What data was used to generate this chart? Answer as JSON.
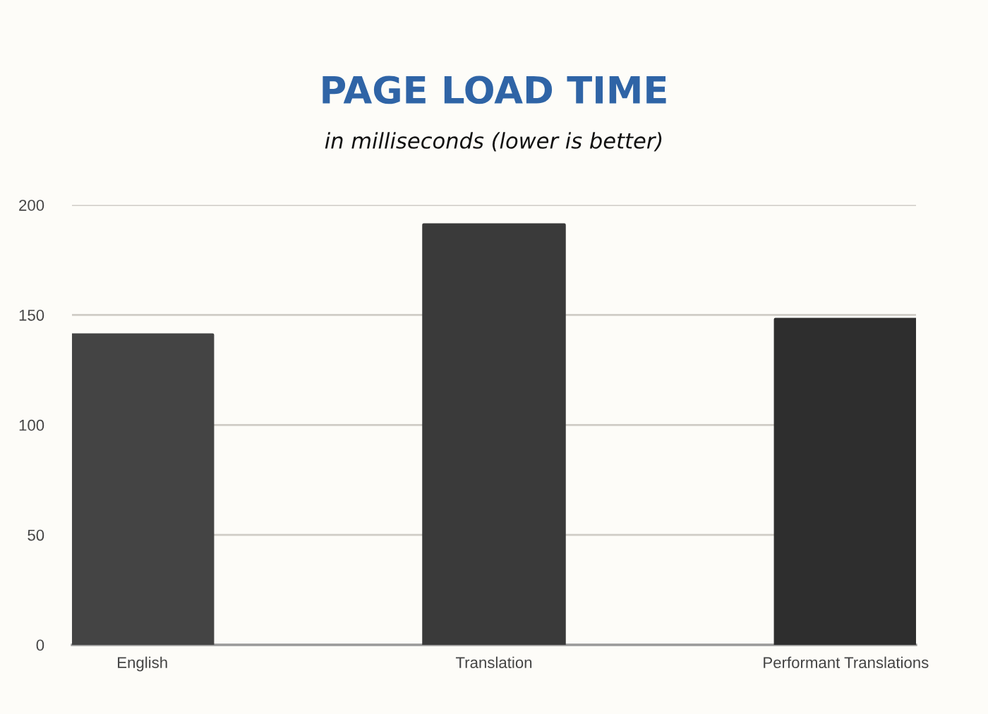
{
  "chart_data": {
    "type": "bar",
    "title": "PAGE LOAD TIME",
    "subtitle": "in milliseconds (lower is better)",
    "categories": [
      "English",
      "Translation",
      "Performant Translations"
    ],
    "values": [
      141,
      191,
      148
    ],
    "colors": [
      "#444444",
      "#3a3a3a",
      "#2e2e2e"
    ],
    "ylim": [
      0,
      200
    ],
    "yticks": [
      0,
      50,
      100,
      150,
      200
    ],
    "grid": "y"
  }
}
